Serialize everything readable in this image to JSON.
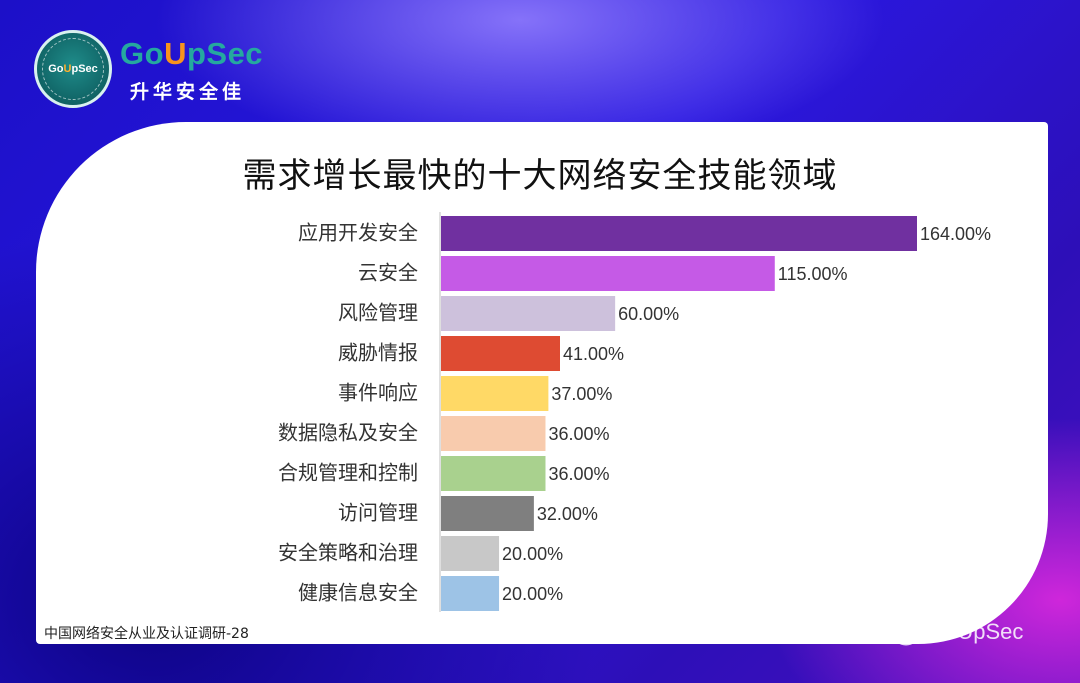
{
  "brand": {
    "badge_text_pre": "Go",
    "badge_text_up": "U",
    "badge_text_post": "pSec",
    "name_pre": "Go",
    "name_up": "U",
    "name_post": "pSec",
    "subtitle": "升华安全佳"
  },
  "footnote": "中国网络安全从业及认证调研-28",
  "watermark": "GoUpSec",
  "chart_data": {
    "type": "bar",
    "orientation": "horizontal",
    "title": "需求增长最快的十大网络安全技能领域",
    "xlabel": "",
    "ylabel": "",
    "categories": [
      "应用开发安全",
      "云安全",
      "风险管理",
      "威胁情报",
      "事件响应",
      "数据隐私及安全",
      "合规管理和控制",
      "访问管理",
      "安全策略和治理",
      "健康信息安全"
    ],
    "values": [
      164,
      115,
      60,
      41,
      37,
      36,
      36,
      32,
      20,
      20
    ],
    "labels": [
      "164.00%",
      "115.00%",
      "60.00%",
      "41.00%",
      "37.00%",
      "36.00%",
      "36.00%",
      "32.00%",
      "20.00%",
      "20.00%"
    ],
    "colors": [
      "#7030a0",
      "#c55ae6",
      "#cdc1dc",
      "#de4b32",
      "#ffd966",
      "#f8cbad",
      "#a9d18e",
      "#7f7f7f",
      "#c8c8c8",
      "#9dc3e6"
    ],
    "xlim": [
      0,
      164
    ],
    "grid": false,
    "legend": "none"
  }
}
